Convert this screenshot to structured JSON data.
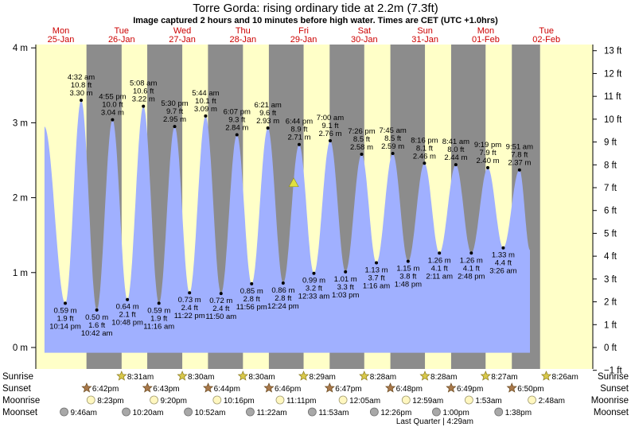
{
  "header": {
    "title": "Torre Gorda: rising  ordinary tide at 2.2m (7.3ft)",
    "subtitle": "Image captured 2 hours and 10 minutes before high water. Times are CET (UTC +1.0hrs)"
  },
  "colors": {
    "day": "#ffffc8",
    "night": "#8c8c8c",
    "water": "#a0b0ff",
    "day_label": "#cc0000",
    "marker": "#e0e040"
  },
  "chart_data": {
    "type": "area",
    "title": "Torre Gorda: rising  ordinary tide at 2.2m (7.3ft)",
    "subtitle": "Image captured 2 hours and 10 minutes before high water. Times are CET (UTC +1.0hrs)",
    "x_unit": "hours from Mon 25-Jan 00:00 (CET)",
    "x_range": [
      0,
      198
    ],
    "ylim": [
      -0.3048,
      4.2
    ],
    "y_left_ticks": [
      {
        "value": 0,
        "label": "0 m"
      },
      {
        "value": 1,
        "label": "1 m"
      },
      {
        "value": 2,
        "label": "2 m"
      },
      {
        "value": 3,
        "label": "3 m"
      },
      {
        "value": 4,
        "label": "4 m"
      }
    ],
    "y_right_ticks": [
      {
        "ft": -1,
        "label": "−1 ft"
      },
      {
        "ft": 0,
        "label": "0 ft"
      },
      {
        "ft": 1,
        "label": "1 ft"
      },
      {
        "ft": 2,
        "label": "2 ft"
      },
      {
        "ft": 3,
        "label": "3 ft"
      },
      {
        "ft": 4,
        "label": "4 ft"
      },
      {
        "ft": 5,
        "label": "5 ft"
      },
      {
        "ft": 6,
        "label": "6 ft"
      },
      {
        "ft": 7,
        "label": "7 ft"
      },
      {
        "ft": 8,
        "label": "8 ft"
      },
      {
        "ft": 9,
        "label": "9 ft"
      },
      {
        "ft": 10,
        "label": "10 ft"
      },
      {
        "ft": 11,
        "label": "11 ft"
      },
      {
        "ft": 12,
        "label": "12 ft"
      },
      {
        "ft": 13,
        "label": "13 ft"
      }
    ],
    "day_labels": [
      {
        "day": "Mon",
        "date": "25-Jan",
        "x": 0
      },
      {
        "day": "Tue",
        "date": "26-Jan",
        "x": 24
      },
      {
        "day": "Wed",
        "date": "27-Jan",
        "x": 48
      },
      {
        "day": "Thu",
        "date": "28-Jan",
        "x": 72
      },
      {
        "day": "Fri",
        "date": "29-Jan",
        "x": 96
      },
      {
        "day": "Sat",
        "date": "30-Jan",
        "x": 120
      },
      {
        "day": "Sun",
        "date": "31-Jan",
        "x": 144
      },
      {
        "day": "Mon",
        "date": "01-Feb",
        "x": 168
      },
      {
        "day": "Tue",
        "date": "02-Feb",
        "x": 192
      }
    ],
    "night_bands": [
      [
        18.62,
        32.52
      ],
      [
        42.65,
        56.5
      ],
      [
        66.67,
        80.5
      ],
      [
        90.75,
        104.48
      ],
      [
        114.78,
        128.47
      ],
      [
        138.8,
        152.47
      ],
      [
        162.82,
        176.45
      ],
      [
        186.83,
        198
      ]
    ],
    "tide_series": [
      {
        "x": 2.0,
        "y": 2.95
      },
      {
        "x": 10.23,
        "y": 0.59,
        "type": "low",
        "time": "10:14 pm",
        "m": "0.59 m",
        "ft": "1.9 ft"
      },
      {
        "x": 16.53,
        "y": 3.3,
        "type": "high",
        "time": "4:32 am",
        "m": "3.30 m",
        "ft": "10.8 ft"
      },
      {
        "x": 22.7,
        "y": 0.5,
        "type": "low",
        "time": "10:42 am",
        "m": "0.50 m",
        "ft": "1.6 ft"
      },
      {
        "x": 28.92,
        "y": 3.04,
        "type": "high",
        "time": "4:55 pm",
        "m": "3.04 m",
        "ft": "10.0 ft"
      },
      {
        "x": 34.8,
        "y": 0.64,
        "type": "low",
        "time": "10:48 pm",
        "m": "0.64 m",
        "ft": "2.1 ft"
      },
      {
        "x": 41.13,
        "y": 3.22,
        "type": "high",
        "time": "5:08 am",
        "m": "3.22 m",
        "ft": "10.6 ft"
      },
      {
        "x": 47.27,
        "y": 0.59,
        "type": "low",
        "time": "11:16 am",
        "m": "0.59 m",
        "ft": "1.9 ft"
      },
      {
        "x": 53.5,
        "y": 2.95,
        "type": "high",
        "time": "5:30 pm",
        "m": "2.95 m",
        "ft": "9.7 ft"
      },
      {
        "x": 59.37,
        "y": 0.73,
        "type": "low",
        "time": "11:22 pm",
        "m": "0.73 m",
        "ft": "2.4 ft"
      },
      {
        "x": 65.73,
        "y": 3.09,
        "type": "high",
        "time": "5:44 am",
        "m": "3.09 m",
        "ft": "10.1 ft"
      },
      {
        "x": 71.83,
        "y": 0.72,
        "type": "low",
        "time": "11:50 am",
        "m": "0.72 m",
        "ft": "2.4 ft"
      },
      {
        "x": 78.12,
        "y": 2.84,
        "type": "high",
        "time": "6:07 pm",
        "m": "2.84 m",
        "ft": "9.3 ft"
      },
      {
        "x": 83.93,
        "y": 0.85,
        "type": "low",
        "time": "11:56 pm",
        "m": "0.85 m",
        "ft": "2.8 ft"
      },
      {
        "x": 90.35,
        "y": 2.93,
        "type": "high",
        "time": "6:21 am",
        "m": "2.93 m",
        "ft": "9.6 ft"
      },
      {
        "x": 96.4,
        "y": 0.86,
        "type": "low",
        "time": "12:24 pm",
        "m": "0.86 m",
        "ft": "2.8 ft"
      },
      {
        "x": 102.73,
        "y": 2.71,
        "type": "high",
        "time": "6:44 pm",
        "m": "2.71 m",
        "ft": "8.9 ft"
      },
      {
        "x": 108.55,
        "y": 0.99,
        "type": "low",
        "time": "12:33 am",
        "m": "0.99 m",
        "ft": "3.2 ft"
      },
      {
        "x": 115.0,
        "y": 2.76,
        "type": "high",
        "time": "7:00 am",
        "m": "2.76 m",
        "ft": "9.1 ft"
      },
      {
        "x": 121.05,
        "y": 1.01,
        "type": "low",
        "time": "1:03 pm",
        "m": "1.01 m",
        "ft": "3.3 ft"
      },
      {
        "x": 127.43,
        "y": 2.58,
        "type": "high",
        "time": "7:26 pm",
        "m": "2.58 m",
        "ft": "8.5 ft"
      },
      {
        "x": 133.27,
        "y": 1.13,
        "type": "low",
        "time": "1:16 am",
        "m": "1.13 m",
        "ft": "3.7 ft"
      },
      {
        "x": 139.75,
        "y": 2.59,
        "type": "high",
        "time": "7:45 am",
        "m": "2.59 m",
        "ft": "8.5 ft"
      },
      {
        "x": 145.8,
        "y": 1.15,
        "type": "low",
        "time": "1:48 pm",
        "m": "1.15 m",
        "ft": "3.8 ft"
      },
      {
        "x": 152.27,
        "y": 2.46,
        "type": "high",
        "time": "8:16 pm",
        "m": "2.46 m",
        "ft": "8.1 ft"
      },
      {
        "x": 158.18,
        "y": 1.26,
        "type": "low",
        "time": "2:11 am",
        "m": "1.26 m",
        "ft": "4.1 ft"
      },
      {
        "x": 164.68,
        "y": 2.44,
        "type": "high",
        "time": "8:41 am",
        "m": "2.44 m",
        "ft": "8.0 ft"
      },
      {
        "x": 170.8,
        "y": 1.26,
        "type": "low",
        "time": "2:48 pm",
        "m": "1.26 m",
        "ft": "4.1 ft"
      },
      {
        "x": 177.32,
        "y": 2.4,
        "type": "high",
        "time": "9:19 pm",
        "m": "2.40 m",
        "ft": "7.9 ft"
      },
      {
        "x": 183.43,
        "y": 1.33,
        "type": "low",
        "time": "3:26 am",
        "m": "1.33 m",
        "ft": "4.4 ft"
      },
      {
        "x": 189.85,
        "y": 2.37,
        "type": "high",
        "time": "9:51 am",
        "m": "2.37 m",
        "ft": "7.8 ft"
      },
      {
        "x": 194.0,
        "y": 1.3
      }
    ],
    "current": {
      "x": 100.58,
      "y": 2.2
    }
  },
  "almanac": {
    "row_labels": [
      "Sunrise",
      "Sunset",
      "Moonrise",
      "Moonset"
    ],
    "sunrise": [
      {
        "x": 32.52,
        "time": "8:31am"
      },
      {
        "x": 56.5,
        "time": "8:30am"
      },
      {
        "x": 80.5,
        "time": "8:30am"
      },
      {
        "x": 104.48,
        "time": "8:29am"
      },
      {
        "x": 128.47,
        "time": "8:28am"
      },
      {
        "x": 152.47,
        "time": "8:28am"
      },
      {
        "x": 176.45,
        "time": "8:27am"
      },
      {
        "x": 200.43,
        "time": "8:26am"
      }
    ],
    "sunset": [
      {
        "x": 18.7,
        "time": "6:42pm"
      },
      {
        "x": 42.72,
        "time": "6:43pm"
      },
      {
        "x": 66.73,
        "time": "6:44pm"
      },
      {
        "x": 90.77,
        "time": "6:46pm"
      },
      {
        "x": 114.78,
        "time": "6:47pm"
      },
      {
        "x": 138.8,
        "time": "6:48pm"
      },
      {
        "x": 162.82,
        "time": "6:49pm"
      },
      {
        "x": 186.83,
        "time": "6:50pm"
      }
    ],
    "moonrise": [
      {
        "x": 20.38,
        "time": "8:23pm"
      },
      {
        "x": 45.33,
        "time": "9:20pm"
      },
      {
        "x": 70.27,
        "time": "10:16pm"
      },
      {
        "x": 95.18,
        "time": "11:11pm"
      },
      {
        "x": 120.08,
        "time": "12:05am"
      },
      {
        "x": 145.0,
        "time": "12:59am"
      },
      {
        "x": 169.88,
        "time": "1:53am"
      },
      {
        "x": 194.8,
        "time": "2:48am"
      }
    ],
    "moonset": [
      {
        "x": 9.77,
        "time": "9:46am"
      },
      {
        "x": 34.33,
        "time": "10:20am"
      },
      {
        "x": 58.87,
        "time": "10:52am"
      },
      {
        "x": 83.37,
        "time": "11:22am"
      },
      {
        "x": 107.88,
        "time": "11:53am"
      },
      {
        "x": 132.43,
        "time": "12:26pm"
      },
      {
        "x": 157.0,
        "time": "1:00pm"
      },
      {
        "x": 181.63,
        "time": "1:38pm"
      }
    ],
    "moon_phase": {
      "label": "Last Quarter | 4:29am",
      "x": 148.48
    }
  }
}
